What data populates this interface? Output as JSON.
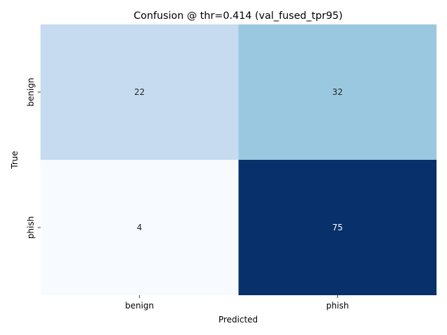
{
  "chart_data": {
    "type": "heatmap",
    "title": "Confusion @ thr=0.414 (val_fused_tpr95)",
    "xlabel": "Predicted",
    "ylabel": "True",
    "x_categories": [
      "benign",
      "phish"
    ],
    "y_categories": [
      "benign",
      "phish"
    ],
    "values": [
      [
        22,
        32
      ],
      [
        4,
        75
      ]
    ],
    "colormap": "Blues",
    "colorbar": false,
    "vmin": 4,
    "vmax": 75,
    "colors": {
      "22": "#c6dbef",
      "32": "#9ac8e0",
      "4": "#f7fbff",
      "75": "#08306b"
    }
  }
}
